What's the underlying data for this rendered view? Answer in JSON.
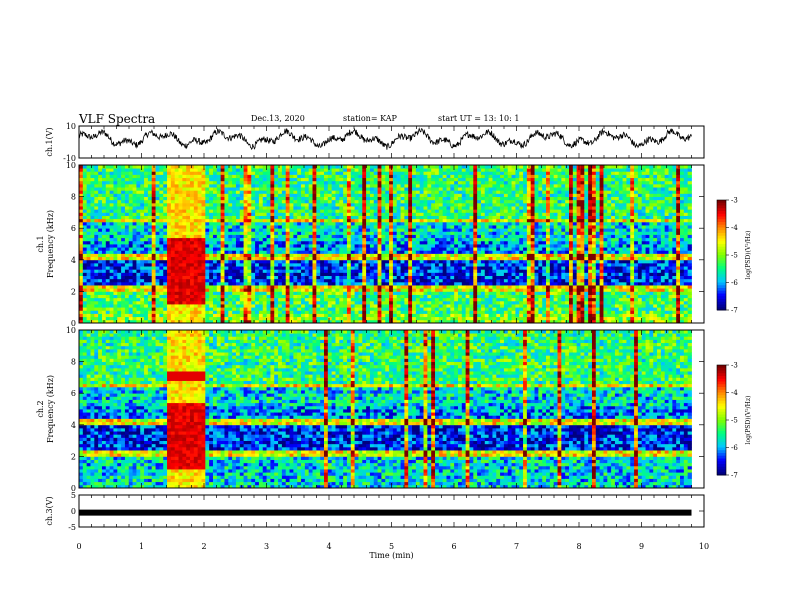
{
  "header": {
    "title": "VLF Spectra",
    "date": "Dec.13, 2020",
    "station": "station= KAP",
    "start": "start  UT =   13: 10: 1"
  },
  "chart_data": [
    {
      "type": "line",
      "panel": "ch1-waveform",
      "ylabel": "ch.1(V)",
      "ylim": [
        -10,
        10
      ],
      "yticks": [
        "10",
        "-10"
      ],
      "xlim": [
        0,
        9.8
      ],
      "baseline": 2
    },
    {
      "type": "heatmap",
      "panel": "ch1-spectrogram",
      "ylabel": "ch.1\nFrequency (kHz)",
      "ylim": [
        0,
        10
      ],
      "yticks": [
        "0",
        "2",
        "4",
        "6",
        "8",
        "10"
      ],
      "xlim": [
        0,
        9.8
      ],
      "burst_x": [
        1.4,
        2.05
      ],
      "colorbar": {
        "label": "log(PSD)(V²/Hz)",
        "ticks": [
          "-3",
          "-4",
          "-5",
          "-6",
          "-7"
        ],
        "range": [
          -7,
          -3
        ]
      }
    },
    {
      "type": "heatmap",
      "panel": "ch2-spectrogram",
      "ylabel": "ch.2\nFrequency (kHz)",
      "ylim": [
        0,
        10
      ],
      "yticks": [
        "0",
        "2",
        "4",
        "6",
        "8",
        "10"
      ],
      "xlim": [
        0,
        9.8
      ],
      "burst_x": [
        1.4,
        2.05
      ],
      "colorbar": {
        "label": "log(PSD)(V²/Hz)",
        "ticks": [
          "-3",
          "-4",
          "-5",
          "-6",
          "-7"
        ],
        "range": [
          -7,
          -3
        ]
      }
    },
    {
      "type": "line",
      "panel": "ch3-waveform",
      "ylabel": "ch.3(V)",
      "ylim": [
        -5,
        5
      ],
      "yticks": [
        "5",
        "0",
        "-5"
      ],
      "xlim": [
        0,
        9.8
      ],
      "constant_value": -0.5
    }
  ],
  "x_axis": {
    "label": "Time (min)",
    "range": [
      0,
      10
    ],
    "ticks": [
      "0",
      "1",
      "2",
      "3",
      "4",
      "5",
      "6",
      "7",
      "8",
      "9",
      "10"
    ]
  }
}
